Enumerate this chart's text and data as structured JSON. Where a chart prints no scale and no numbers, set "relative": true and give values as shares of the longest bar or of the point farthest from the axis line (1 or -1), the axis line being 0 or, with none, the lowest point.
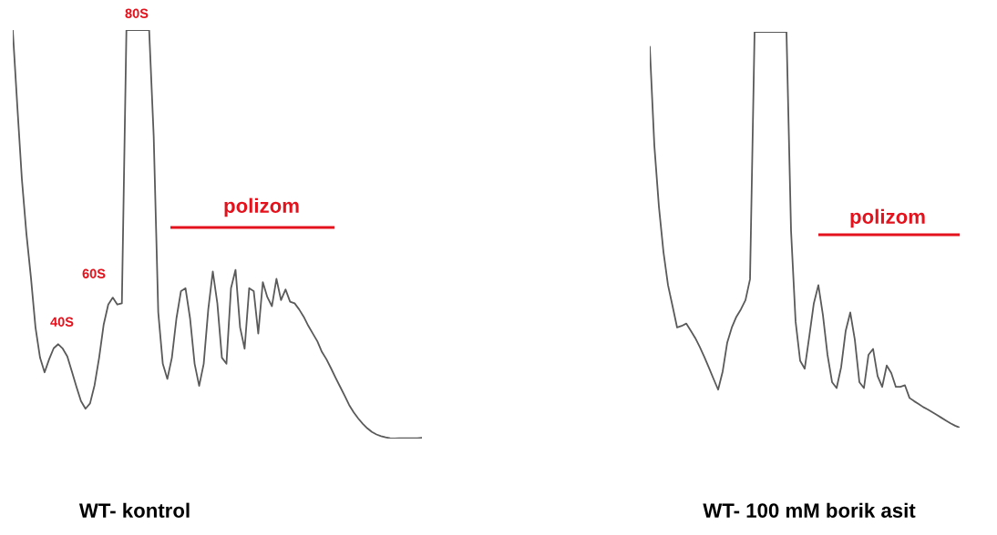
{
  "chart_data": [
    {
      "type": "line",
      "relative": true,
      "title": "WT- kontrol",
      "annotations": [
        "80S",
        "60S",
        "40S",
        "polizom"
      ],
      "line_style": "solid",
      "tick_labels": false,
      "categories": [
        null,
        null,
        null,
        null,
        null,
        null,
        null,
        null,
        null,
        null,
        null,
        null,
        null,
        null,
        null,
        null,
        null,
        null,
        null,
        null,
        null,
        null,
        null,
        null,
        null,
        null,
        null,
        null,
        null,
        null,
        null,
        null,
        null,
        null,
        null,
        null,
        null,
        null,
        null,
        null,
        null,
        null,
        null,
        null,
        null,
        null,
        null,
        null,
        null,
        null,
        null,
        null,
        null,
        null,
        null,
        null,
        null,
        null,
        null,
        null,
        null,
        null,
        null,
        null,
        null,
        null,
        null,
        null,
        null,
        null,
        null,
        null,
        null,
        null,
        null,
        null,
        null,
        null,
        null,
        null,
        null,
        null,
        null,
        null,
        null,
        null,
        null,
        null,
        null,
        null,
        null
      ],
      "series": [
        {
          "color": "#5a5a5a",
          "values": [
            1.0,
            0.814,
            0.636,
            0.502,
            0.394,
            0.272,
            0.198,
            0.162,
            0.194,
            0.221,
            0.231,
            0.22,
            0.201,
            0.164,
            0.127,
            0.092,
            0.073,
            0.086,
            0.131,
            0.198,
            0.279,
            0.328,
            0.345,
            0.328,
            0.331,
            1.0,
            1.0,
            1.0,
            1.0,
            1.0,
            1.0,
            0.74,
            0.309,
            0.183,
            0.146,
            0.198,
            0.294,
            0.361,
            0.368,
            0.294,
            0.183,
            0.129,
            0.183,
            0.316,
            0.409,
            0.331,
            0.198,
            0.183,
            0.368,
            0.413,
            0.272,
            0.22,
            0.368,
            0.361,
            0.257,
            0.383,
            0.346,
            0.324,
            0.391,
            0.339,
            0.365,
            0.335,
            0.331,
            0.316,
            0.298,
            0.276,
            0.257,
            0.238,
            0.212,
            0.194,
            0.172,
            0.149,
            0.127,
            0.105,
            0.082,
            0.064,
            0.049,
            0.036,
            0.025,
            0.016,
            0.01,
            0.006,
            0.003,
            0.001,
            0.0,
            0.001,
            0.001,
            0.001,
            0.001,
            0.001,
            0.002
          ]
        }
      ]
    },
    {
      "type": "line",
      "relative": true,
      "title": "WT- 100 mM borik asit",
      "annotations": [
        "polizom"
      ],
      "line_style": "solid",
      "tick_labels": false,
      "categories": [
        null,
        null,
        null,
        null,
        null,
        null,
        null,
        null,
        null,
        null,
        null,
        null,
        null,
        null,
        null,
        null,
        null,
        null,
        null,
        null,
        null,
        null,
        null,
        null,
        null,
        null,
        null,
        null,
        null,
        null,
        null,
        null,
        null,
        null,
        null,
        null,
        null,
        null,
        null,
        null,
        null,
        null,
        null,
        null,
        null,
        null,
        null,
        null,
        null,
        null,
        null,
        null,
        null,
        null,
        null,
        null,
        null,
        null,
        null,
        null,
        null,
        null,
        null,
        null,
        null,
        null,
        null,
        null,
        null
      ],
      "series": [
        {
          "color": "#5a5a5a",
          "values": [
            0.962,
            0.713,
            0.559,
            0.444,
            0.36,
            0.307,
            0.253,
            0.257,
            0.263,
            0.245,
            0.226,
            0.203,
            0.178,
            0.151,
            0.123,
            0.096,
            0.142,
            0.215,
            0.253,
            0.28,
            0.299,
            0.322,
            0.375,
            1.0,
            1.0,
            1.0,
            1.0,
            1.0,
            1.0,
            1.0,
            1.0,
            0.498,
            0.268,
            0.169,
            0.149,
            0.23,
            0.314,
            0.36,
            0.284,
            0.184,
            0.115,
            0.1,
            0.153,
            0.245,
            0.291,
            0.222,
            0.115,
            0.1,
            0.184,
            0.199,
            0.13,
            0.103,
            0.157,
            0.138,
            0.103,
            0.103,
            0.107,
            0.075,
            0.067,
            0.06,
            0.052,
            0.046,
            0.039,
            0.032,
            0.025,
            0.018,
            0.011,
            0.005,
            0.0
          ]
        }
      ]
    }
  ]
}
